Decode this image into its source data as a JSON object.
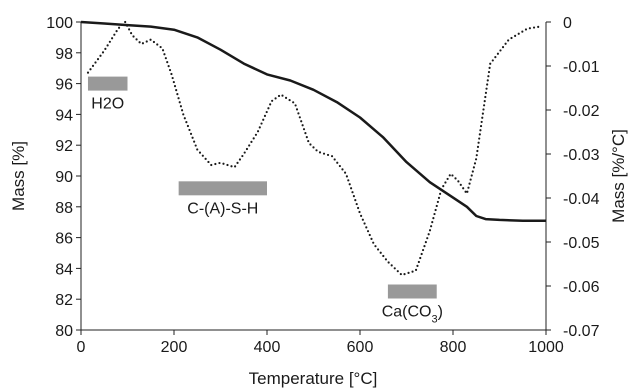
{
  "chart_data": {
    "type": "line",
    "xlabel": "Temperature [°C]",
    "ylabel": "Mass [%]",
    "y2label": "Mass [%/°C]",
    "xlim": [
      0,
      1000
    ],
    "ylim": [
      80,
      100
    ],
    "y2lim": [
      -0.07,
      0
    ],
    "x_ticks": [
      "0",
      "200",
      "400",
      "600",
      "800",
      "1000"
    ],
    "y_ticks": [
      "80",
      "82",
      "84",
      "86",
      "88",
      "90",
      "92",
      "94",
      "96",
      "98",
      "100"
    ],
    "y2_ticks": [
      "-0.07",
      "-0.06",
      "-0.05",
      "-0.04",
      "-0.03",
      "-0.02",
      "-0.01",
      "0"
    ],
    "grid": false,
    "series": [
      {
        "axis": "left",
        "style": "solid",
        "x": [
          0,
          50,
          100,
          150,
          200,
          250,
          300,
          350,
          400,
          450,
          500,
          550,
          600,
          650,
          700,
          750,
          800,
          830,
          850,
          870,
          900,
          950,
          1000
        ],
        "y": [
          100,
          99.9,
          99.8,
          99.7,
          99.5,
          99.0,
          98.2,
          97.3,
          96.6,
          96.2,
          95.6,
          94.8,
          93.8,
          92.5,
          90.9,
          89.6,
          88.6,
          88.0,
          87.4,
          87.2,
          87.15,
          87.1,
          87.1
        ]
      },
      {
        "axis": "right",
        "style": "dotted",
        "x": [
          15,
          50,
          80,
          95,
          110,
          130,
          150,
          175,
          195,
          220,
          250,
          280,
          300,
          330,
          350,
          380,
          410,
          430,
          460,
          490,
          510,
          540,
          570,
          600,
          630,
          660,
          690,
          720,
          750,
          775,
          795,
          810,
          830,
          850,
          880,
          920,
          960,
          990
        ],
        "y": [
          -0.0115,
          -0.0065,
          -0.0015,
          0.0,
          -0.003,
          -0.005,
          -0.004,
          -0.006,
          -0.012,
          -0.021,
          -0.029,
          -0.0325,
          -0.032,
          -0.033,
          -0.03,
          -0.025,
          -0.018,
          -0.0165,
          -0.0185,
          -0.0275,
          -0.0295,
          -0.0305,
          -0.0345,
          -0.0435,
          -0.0505,
          -0.0545,
          -0.0575,
          -0.0565,
          -0.0475,
          -0.038,
          -0.0345,
          -0.036,
          -0.039,
          -0.031,
          -0.0095,
          -0.004,
          -0.0015,
          -0.001
        ]
      }
    ],
    "annotations": [
      {
        "label": "H2O",
        "x0": 15,
        "x1": 100,
        "y": 96
      },
      {
        "label": "C-(A)-S-H",
        "x0": 210,
        "x1": 400,
        "y": 89.2
      },
      {
        "label": "Ca(CO3)",
        "x0": 660,
        "x1": 765,
        "y": 82.5
      }
    ],
    "annotation_color": "#999999",
    "line_color": "#1a1a1a"
  }
}
